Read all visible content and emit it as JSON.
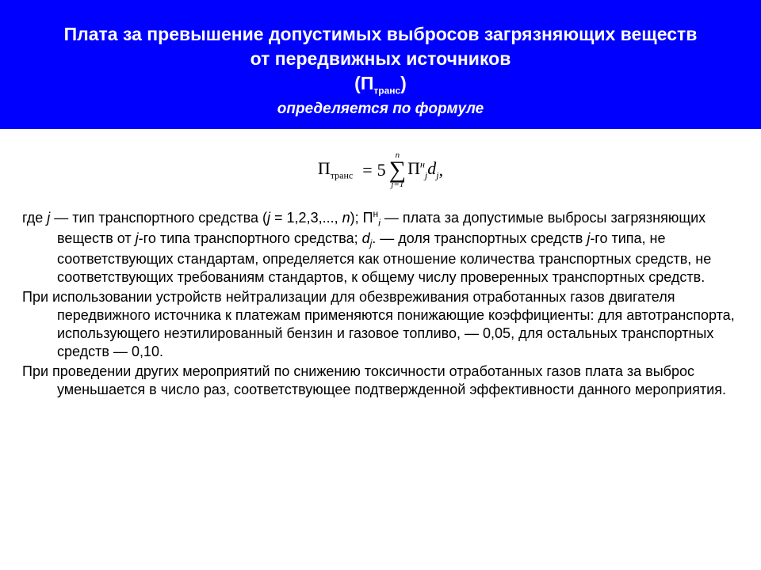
{
  "header": {
    "title_line1": "Плата за превышение допустимых выбросов загрязняющих веществ от передвижных источников",
    "title_symbol_pre": "(П",
    "title_symbol_sub": "транс",
    "title_symbol_post": ")",
    "subtitle": "определяется по формуле"
  },
  "formula": {
    "lhs_sym": "П",
    "lhs_sub": "транс",
    "coef": "5",
    "sum_upper": "n",
    "sum_lower": "j=1",
    "rhs_sym": "П",
    "rhs_sub": "j",
    "rhs_sup": "н",
    "d_sym": "d",
    "d_sub": "j",
    "tail": ","
  },
  "para1": {
    "lead": "где ",
    "j": "j",
    "after_j": " — тип транспортного средства (",
    "j2": "j",
    "after_j2": " = 1,2,3,..., ",
    "n": "n",
    "after_n": "); П",
    "sup_n": "н",
    "sub_i": "i",
    "after_pi": " — плата за допустимые выбросы загрязняющих веществ от ",
    "j3": "j",
    "after_j3": "-го типа транспортного средства; ",
    "d": "d",
    "d_sub": "j",
    "after_d": ". — доля транспортных средств ",
    "j4": "j",
    "after_j4": "-го типа, не соответствующих стандартам, определяется как отношение количества транспортных средств, не соответствующих требованиям стандартов, к общему числу проверенных транспортных средств."
  },
  "para2": "При использовании устройств нейтрализации для обезвреживания отработанных газов двигателя передвижного источника к платежам применяются понижающие коэффициенты: для автотранспорта, использующего неэтилированный бензин и газовое топливо, — 0,05, для остальных транспортных средств — 0,10.",
  "para3": "При проведении других мероприятий по снижению токсичности отработанных газов плата за выброс уменьшается в число раз, соответствующее подтвержденной эффективности данного мероприятия."
}
